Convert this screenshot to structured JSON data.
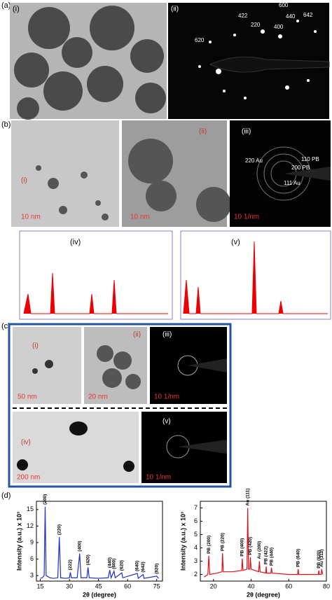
{
  "panels": {
    "a": {
      "label": "(a)",
      "sub": [
        "(i)",
        "(ii)"
      ],
      "rings": [
        "600",
        "642",
        "422",
        "440",
        "220",
        "400",
        "620"
      ]
    },
    "b": {
      "label": "(b)",
      "sub": [
        "(i)",
        "(ii)",
        "(iii)",
        "(iv)",
        "(v)"
      ],
      "scales": [
        "10 nm",
        "10 nm",
        "10 1/nm"
      ],
      "saed": [
        "220 Au",
        "110 PB",
        "200 PB",
        "111 Au"
      ]
    },
    "c": {
      "label": "(c)",
      "sub": [
        "(i)",
        "(ii)",
        "(iii)",
        "(iv)",
        "(v)"
      ],
      "scales": [
        "50 nm",
        "20 nm",
        "10 1/nm",
        "200 nm",
        "10 1/nm"
      ]
    },
    "d": {
      "label": "(d)"
    }
  },
  "chart_data": [
    {
      "type": "line",
      "x_label": "2θ (degree)",
      "y_label": "Intensity (a.u.) x 10³",
      "x": [
        15,
        16,
        17,
        17.5,
        18,
        20,
        22,
        24,
        24.8,
        25.5,
        28,
        30,
        30.5,
        31,
        34,
        35.3,
        36,
        39,
        39.6,
        40.2,
        45,
        50,
        50.8,
        51.5,
        53,
        53.6,
        57,
        57.5,
        65,
        65.5,
        68,
        68.5,
        75,
        76
      ],
      "series": [
        {
          "color": "#1f2fd0",
          "values": [
            2.5,
            2.6,
            3,
            15.5,
            3,
            2.6,
            2.5,
            2.6,
            10,
            2.6,
            2.5,
            2.6,
            3.6,
            2.6,
            2.6,
            7,
            2.6,
            2.6,
            4.5,
            2.6,
            2.5,
            2.6,
            4,
            2.6,
            3.8,
            2.6,
            3.5,
            2.6,
            3.4,
            2.5,
            3.2,
            2.5,
            2.9,
            2.5
          ]
        }
      ],
      "xlim": [
        13,
        78
      ],
      "ylim": [
        2,
        16.5
      ],
      "xticks": [
        15,
        30,
        45,
        60,
        75
      ],
      "yticks": [
        3,
        6,
        9,
        12,
        15
      ],
      "annotations": [
        {
          "text": "(200)",
          "x": 17.5
        },
        {
          "text": "(220)",
          "x": 24.8
        },
        {
          "text": "(222)",
          "x": 30.5
        },
        {
          "text": "(400)",
          "x": 35.3
        },
        {
          "text": "(420)",
          "x": 39.6
        },
        {
          "text": "(440)",
          "x": 50.8
        },
        {
          "text": "(600)",
          "x": 53
        },
        {
          "text": "(620)",
          "x": 57
        },
        {
          "text": "(640)",
          "x": 65
        },
        {
          "text": "(642)",
          "x": 68
        },
        {
          "text": "(820)",
          "x": 75
        }
      ]
    },
    {
      "type": "line",
      "x_label": "2θ (degree)",
      "y_label": "Intensity (a.u.) x 10³",
      "x": [
        15,
        17,
        17.5,
        18,
        22,
        24.5,
        24.8,
        25.2,
        30,
        35,
        35.3,
        35.7,
        37.8,
        38.2,
        38.6,
        39.3,
        39.6,
        40,
        44,
        44.4,
        44.8,
        47.8,
        48,
        48.3,
        50.5,
        50.8,
        51.2,
        60,
        64.7,
        65,
        65.3,
        70,
        75.7,
        76,
        76.3,
        77.2,
        77.5,
        78
      ],
      "series": [
        {
          "color": "#e0101a",
          "values": [
            1.8,
            2,
            3.4,
            2,
            2.1,
            2.2,
            3.6,
            2.2,
            2.2,
            2.3,
            3.2,
            2.3,
            2.4,
            7,
            2.4,
            2.4,
            3.3,
            2.4,
            2.2,
            3,
            2.2,
            2.1,
            2.6,
            2.1,
            2.1,
            2.5,
            2.1,
            2,
            2,
            2.4,
            2,
            2,
            2,
            2.3,
            2,
            2,
            2.4,
            2
          ]
        }
      ],
      "xlim": [
        13,
        80
      ],
      "ylim": [
        1.5,
        7.5
      ],
      "xticks": [
        20,
        40,
        60,
        80
      ],
      "yticks": [
        2,
        3,
        4,
        5,
        6,
        7
      ],
      "annotations": [
        {
          "text": "PB (200)",
          "x": 17.5
        },
        {
          "text": "PB (220)",
          "x": 24.8
        },
        {
          "text": "PB (400)",
          "x": 35.3
        },
        {
          "text": "Au (111)",
          "x": 38.2
        },
        {
          "text": "PB (420)",
          "x": 39.6
        },
        {
          "text": "Au (200)",
          "x": 44.4
        },
        {
          "text": "PB (422)",
          "x": 48
        },
        {
          "text": "PB (440)",
          "x": 50.8
        },
        {
          "text": "PB (640)",
          "x": 65
        },
        {
          "text": "PB (820)",
          "x": 76
        },
        {
          "text": "Au (311)",
          "x": 77.5
        }
      ]
    }
  ]
}
